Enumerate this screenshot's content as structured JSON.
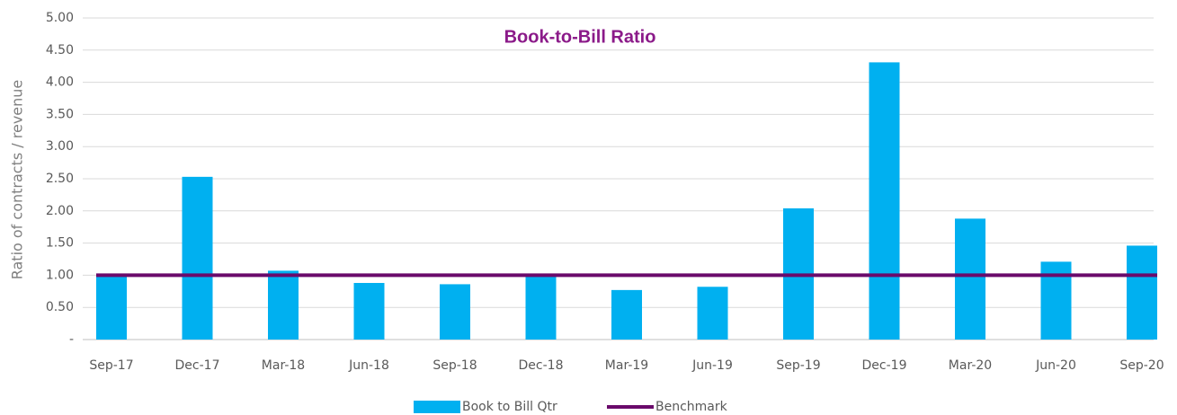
{
  "chart_data": {
    "type": "bar",
    "title": "Book-to-Bill Ratio",
    "y_label": "Ratio of contracts / revenue",
    "categories": [
      "Sep-17",
      "Dec-17",
      "Mar-18",
      "Jun-18",
      "Sep-18",
      "Dec-18",
      "Mar-19",
      "Jun-19",
      "Sep-19",
      "Dec-19",
      "Mar-20",
      "Jun-20",
      "Sep-20"
    ],
    "series": [
      {
        "name": "Book to Bill Qtr",
        "type": "bar",
        "color": "#00b0f0",
        "values": [
          1.01,
          2.53,
          1.07,
          0.88,
          0.86,
          1.02,
          0.77,
          0.82,
          2.04,
          4.31,
          1.88,
          1.21,
          1.46
        ]
      },
      {
        "name": "Benchmark",
        "type": "line",
        "color": "#6a0a6b",
        "values": [
          1,
          1,
          1,
          1,
          1,
          1,
          1,
          1,
          1,
          1,
          1,
          1,
          1
        ]
      }
    ],
    "ylim": [
      0,
      5
    ],
    "yticks": [
      {
        "value": 0,
        "label": "-"
      },
      {
        "value": 0.5,
        "label": "0.50"
      },
      {
        "value": 1,
        "label": "1.00"
      },
      {
        "value": 1.5,
        "label": "1.50"
      },
      {
        "value": 2,
        "label": "2.00"
      },
      {
        "value": 2.5,
        "label": "2.50"
      },
      {
        "value": 3,
        "label": "3.00"
      },
      {
        "value": 3.5,
        "label": "3.50"
      },
      {
        "value": 4,
        "label": "4.00"
      },
      {
        "value": 4.5,
        "label": "4.50"
      },
      {
        "value": 5,
        "label": "5.00"
      }
    ],
    "grid": true,
    "legend": "bottom"
  }
}
